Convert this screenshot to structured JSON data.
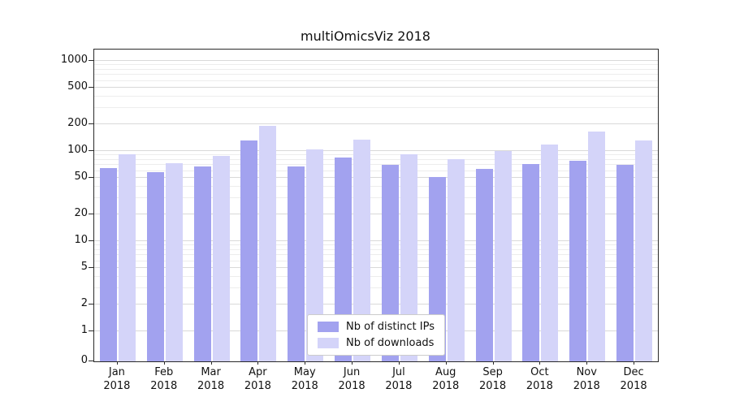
{
  "chart_data": {
    "type": "bar",
    "title": "multiOmicsViz 2018",
    "yscale": "symlog",
    "ylim": [
      0,
      1000
    ],
    "yticks": [
      0,
      1,
      2,
      5,
      10,
      20,
      50,
      100,
      200,
      500,
      1000
    ],
    "months": [
      "Jan",
      "Feb",
      "Mar",
      "Apr",
      "May",
      "Jun",
      "Jul",
      "Aug",
      "Sep",
      "Oct",
      "Nov",
      "Dec"
    ],
    "year": "2018",
    "grid": "on",
    "legend_position": "lower center inside",
    "series": [
      {
        "name": "Nb of distinct IPs",
        "color": "#a2a2ef",
        "values": [
          65,
          58,
          68,
          130,
          68,
          85,
          70,
          52,
          63,
          72,
          78,
          70
        ]
      },
      {
        "name": "Nb of downloads",
        "color": "#d4d4f9",
        "values": [
          92,
          73,
          88,
          190,
          105,
          135,
          92,
          82,
          100,
          118,
          165,
          130
        ]
      }
    ]
  }
}
